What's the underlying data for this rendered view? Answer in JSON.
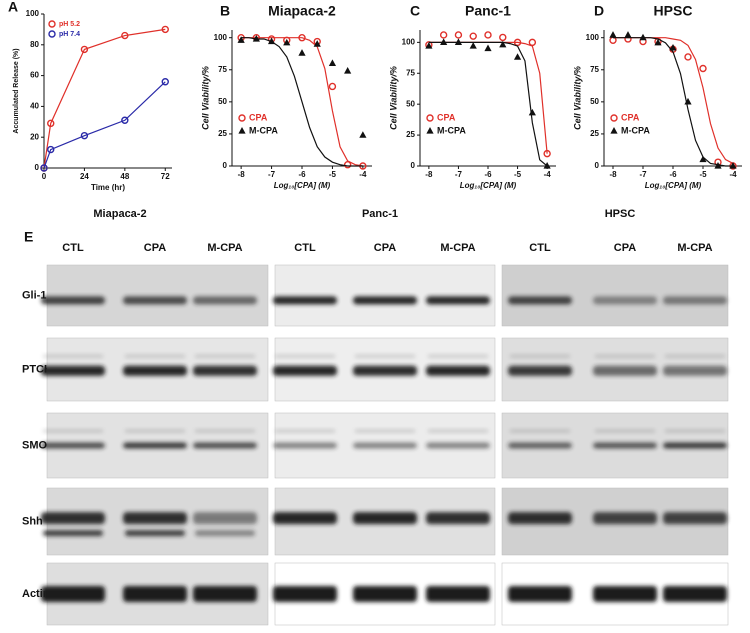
{
  "chart_data": [
    {
      "type": "line",
      "panel_label": "A",
      "x_label": "Time (hr)",
      "y_label": "Accumulated Release (%)",
      "x": [
        0,
        4,
        24,
        48,
        72
      ],
      "xlim": [
        0,
        76
      ],
      "xticks": [
        0,
        24,
        48,
        72
      ],
      "ylim": [
        0,
        100
      ],
      "yticks": [
        0,
        20,
        40,
        60,
        80,
        100
      ],
      "legend": "upper-left",
      "series": [
        {
          "name": "pH 5.2",
          "color": "#e0302a",
          "values": [
            0,
            29,
            77,
            86,
            90
          ]
        },
        {
          "name": "pH 7.4",
          "color": "#2a2aa8",
          "values": [
            0,
            12,
            21,
            31,
            56
          ]
        }
      ]
    },
    {
      "type": "scatter",
      "panel_label": "B",
      "title": "Miapaca-2",
      "x_label": "Log₁₀[CPA] (M)",
      "y_label": "Cell Viability/%",
      "x": [
        -8,
        -7.5,
        -7,
        -6.5,
        -6,
        -5.5,
        -5,
        -4.5,
        -4
      ],
      "xlim": [
        -8.3,
        -3.7
      ],
      "xticks": [
        -8,
        -7,
        -6,
        -5,
        -4
      ],
      "ylim": [
        0,
        106
      ],
      "yticks": [
        0,
        25,
        50,
        75,
        100
      ],
      "legend": "lower-left",
      "fit_x": [
        -8,
        -7.75,
        -7.5,
        -7.25,
        -7,
        -6.75,
        -6.5,
        -6.25,
        -6,
        -5.75,
        -5.5,
        -5.25,
        -5,
        -4.75,
        -4.5,
        -4.25,
        -4
      ],
      "series": [
        {
          "name": "CPA",
          "color": "#e0302a",
          "values": [
            100,
            100,
            99,
            98,
            100,
            97,
            62,
            1,
            0
          ],
          "fit_values": [
            100,
            100,
            100,
            100,
            100,
            100,
            100,
            100,
            100,
            98,
            93,
            76,
            43,
            15,
            4,
            1,
            0
          ]
        },
        {
          "name": "M-CPA",
          "color": "#111111",
          "values": [
            98,
            99,
            97,
            96,
            88,
            95,
            80,
            74,
            24
          ],
          "fit_values": [
            100,
            100,
            99,
            99,
            97,
            93,
            85,
            70,
            50,
            30,
            15,
            7,
            3,
            1,
            0,
            0,
            0
          ]
        }
      ]
    },
    {
      "type": "scatter",
      "panel_label": "C",
      "title": "Panc-1",
      "x_label": "Log₁₀[CPA] (M)",
      "y_label": "Cell Viability/%",
      "x": [
        -8,
        -7.5,
        -7,
        -6.5,
        -6,
        -5.5,
        -5,
        -4.5,
        -4
      ],
      "xlim": [
        -8.3,
        -3.7
      ],
      "xticks": [
        -8,
        -7,
        -6,
        -5,
        -4
      ],
      "ylim": [
        0,
        110
      ],
      "yticks": [
        0,
        25,
        50,
        75,
        100
      ],
      "legend": "lower-left",
      "fit_x": [
        -8,
        -7.75,
        -7.5,
        -7.25,
        -7,
        -6.75,
        -6.5,
        -6.25,
        -6,
        -5.75,
        -5.5,
        -5.25,
        -5,
        -4.75,
        -4.5,
        -4.25,
        -4
      ],
      "series": [
        {
          "name": "CPA",
          "color": "#e0302a",
          "values": [
            98,
            106,
            106,
            105,
            106,
            104,
            100,
            100,
            10
          ],
          "fit_values": [
            100,
            100,
            100,
            100,
            100,
            100,
            100,
            100,
            100,
            100,
            100,
            100,
            100,
            99,
            97,
            75,
            10
          ]
        },
        {
          "name": "M-CPA",
          "color": "#111111",
          "values": [
            97,
            100,
            100,
            97,
            95,
            98,
            88,
            43,
            0
          ],
          "fit_values": [
            100,
            100,
            100,
            100,
            100,
            100,
            100,
            100,
            100,
            100,
            100,
            99,
            97,
            85,
            35,
            5,
            0
          ]
        }
      ]
    },
    {
      "type": "scatter",
      "panel_label": "D",
      "title": "HPSC",
      "x_label": "Log₁₀[CPA] (M)",
      "y_label": "Cell Viability/%",
      "x": [
        -8,
        -7.5,
        -7,
        -6.5,
        -6,
        -5.5,
        -5,
        -4.5,
        -4
      ],
      "xlim": [
        -8.3,
        -3.7
      ],
      "xticks": [
        -8,
        -7,
        -6,
        -5,
        -4
      ],
      "ylim": [
        0,
        106
      ],
      "yticks": [
        0,
        25,
        50,
        75,
        100
      ],
      "legend": "lower-left",
      "fit_x": [
        -8,
        -7.75,
        -7.5,
        -7.25,
        -7,
        -6.75,
        -6.5,
        -6.25,
        -6,
        -5.75,
        -5.5,
        -5.25,
        -5,
        -4.75,
        -4.5,
        -4.25,
        -4
      ],
      "series": [
        {
          "name": "CPA",
          "color": "#e0302a",
          "values": [
            98,
            99,
            97,
            97,
            91,
            85,
            76,
            3,
            0
          ],
          "fit_values": [
            100,
            100,
            100,
            100,
            100,
            100,
            100,
            100,
            99,
            98,
            94,
            83,
            61,
            33,
            14,
            5,
            2
          ]
        },
        {
          "name": "M-CPA",
          "color": "#111111",
          "values": [
            102,
            102,
            100,
            96,
            92,
            50,
            5,
            0,
            0
          ],
          "fit_values": [
            100,
            100,
            100,
            100,
            100,
            100,
            99,
            96,
            89,
            72,
            44,
            20,
            7,
            2,
            1,
            0,
            0
          ]
        }
      ]
    }
  ],
  "blots": {
    "panel_label": "E",
    "groups": [
      {
        "name": "Miapaca-2",
        "lanes": [
          "CTL",
          "CPA",
          "M-CPA"
        ]
      },
      {
        "name": "Panc-1",
        "lanes": [
          "CTL",
          "CPA",
          "M-CPA"
        ]
      },
      {
        "name": "HPSC",
        "lanes": [
          "CTL",
          "CPA",
          "M-CPA"
        ]
      }
    ],
    "rows": [
      "Gli-1",
      "PTCH",
      "SMO",
      "Shh",
      "Actin"
    ]
  }
}
